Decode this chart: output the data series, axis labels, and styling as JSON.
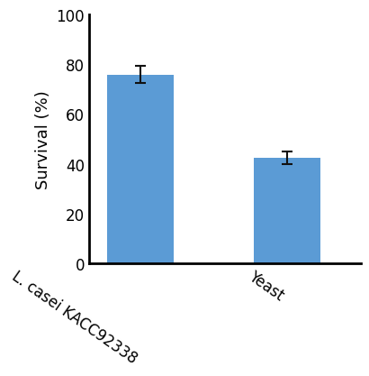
{
  "categories": [
    "L. casei KACC92338",
    "Yeast"
  ],
  "values": [
    76.0,
    42.5
  ],
  "errors": [
    3.5,
    2.5
  ],
  "bar_color": "#5B9BD5",
  "ylabel": "Survival (%)",
  "ylim": [
    0,
    100
  ],
  "yticks": [
    0,
    20,
    40,
    60,
    80,
    100
  ],
  "bar_width": 0.45,
  "error_capsize": 4,
  "error_linewidth": 1.5,
  "error_color": "#111111",
  "ylabel_fontsize": 13,
  "tick_fontsize": 12,
  "xlabel_fontsize": 12,
  "xlabel_rotation": -35,
  "spine_linewidth": 2.0
}
